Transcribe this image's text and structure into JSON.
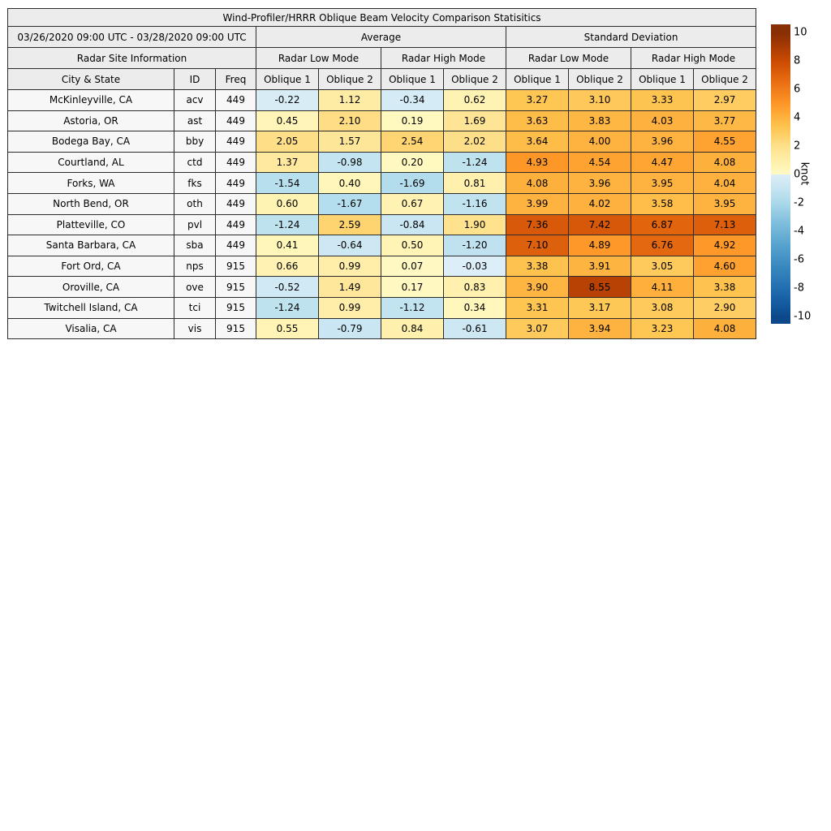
{
  "figure": {
    "title": "Wind-Profiler/HRRR Oblique Beam Velocity Comparison Statisitics",
    "date_range": "03/26/2020 09:00 UTC - 03/28/2020 09:00 UTC",
    "header": {
      "average": "Average",
      "std_dev": "Standard Deviation",
      "site_info": "Radar Site Information",
      "mode_low": "Radar Low Mode",
      "mode_high": "Radar High Mode",
      "city_state": "City & State",
      "id": "ID",
      "freq": "Freq",
      "oblique1": "Oblique 1",
      "oblique2": "Oblique 2"
    },
    "colors": {
      "header_bg": "#ececec",
      "site_cell_bg": "#f7f7f7",
      "border": "#2b2b2b"
    }
  },
  "chart_data": {
    "type": "heatmap",
    "title": "Wind-Profiler/HRRR Oblique Beam Velocity Comparison Statisitics",
    "date_range": "03/26/2020 09:00 UTC - 03/28/2020 09:00 UTC",
    "value_columns": [
      "Average / Radar Low Mode / Oblique 1",
      "Average / Radar Low Mode / Oblique 2",
      "Average / Radar High Mode / Oblique 1",
      "Average / Radar High Mode / Oblique 2",
      "Standard Deviation / Radar Low Mode / Oblique 1",
      "Standard Deviation / Radar Low Mode / Oblique 2",
      "Standard Deviation / Radar High Mode / Oblique 1",
      "Standard Deviation / Radar High Mode / Oblique 2"
    ],
    "rows": [
      {
        "city": "McKinleyville, CA",
        "id": "acv",
        "freq": "449",
        "values": [
          -0.22,
          1.12,
          -0.34,
          0.62,
          3.27,
          3.1,
          3.33,
          2.97
        ]
      },
      {
        "city": "Astoria, OR",
        "id": "ast",
        "freq": "449",
        "values": [
          0.45,
          2.1,
          0.19,
          1.69,
          3.63,
          3.83,
          4.03,
          3.77
        ]
      },
      {
        "city": "Bodega Bay, CA",
        "id": "bby",
        "freq": "449",
        "values": [
          2.05,
          1.57,
          2.54,
          2.02,
          3.64,
          4.0,
          3.96,
          4.55
        ]
      },
      {
        "city": "Courtland, AL",
        "id": "ctd",
        "freq": "449",
        "values": [
          1.37,
          -0.98,
          0.2,
          -1.24,
          4.93,
          4.54,
          4.47,
          4.08
        ]
      },
      {
        "city": "Forks, WA",
        "id": "fks",
        "freq": "449",
        "values": [
          -1.54,
          0.4,
          -1.69,
          0.81,
          4.08,
          3.96,
          3.95,
          4.04
        ]
      },
      {
        "city": "North Bend, OR",
        "id": "oth",
        "freq": "449",
        "values": [
          0.6,
          -1.67,
          0.67,
          -1.16,
          3.99,
          4.02,
          3.58,
          3.95
        ]
      },
      {
        "city": "Platteville, CO",
        "id": "pvl",
        "freq": "449",
        "values": [
          -1.24,
          2.59,
          -0.84,
          1.9,
          7.36,
          7.42,
          6.87,
          7.13
        ]
      },
      {
        "city": "Santa Barbara, CA",
        "id": "sba",
        "freq": "449",
        "values": [
          0.41,
          -0.64,
          0.5,
          -1.2,
          7.1,
          4.89,
          6.76,
          4.92
        ]
      },
      {
        "city": "Fort Ord, CA",
        "id": "nps",
        "freq": "915",
        "values": [
          0.66,
          0.99,
          0.07,
          -0.03,
          3.38,
          3.91,
          3.05,
          4.6
        ]
      },
      {
        "city": "Oroville, CA",
        "id": "ove",
        "freq": "915",
        "values": [
          -0.52,
          1.49,
          0.17,
          0.83,
          3.9,
          8.55,
          4.11,
          3.38
        ]
      },
      {
        "city": "Twitchell Island, CA",
        "id": "tci",
        "freq": "915",
        "values": [
          -1.24,
          0.99,
          -1.12,
          0.34,
          3.31,
          3.17,
          3.08,
          2.9
        ]
      },
      {
        "city": "Visalia, CA",
        "id": "vis",
        "freq": "915",
        "values": [
          0.55,
          -0.79,
          0.84,
          -0.61,
          3.07,
          3.94,
          3.23,
          4.08
        ]
      }
    ],
    "colorbar": {
      "unit": "knot",
      "ticks": [
        "10",
        "8",
        "6",
        "4",
        "2",
        "0",
        "-2",
        "-4",
        "-6",
        "-8",
        "-10"
      ],
      "vmin": -10,
      "vmax": 10,
      "positive_anchor_colors": [
        "#ffffe5",
        "#fff7bc",
        "#fee391",
        "#fec44f",
        "#fe9929",
        "#ec7014",
        "#cc4c02",
        "#993404",
        "#662506"
      ],
      "negative_anchor_colors": [
        "#f7fbff",
        "#d6ebf5",
        "#b0dcec",
        "#81bfdd",
        "#58a4cf",
        "#3a8ac0",
        "#2270b1",
        "#0f5499",
        "#0a3470"
      ]
    }
  }
}
